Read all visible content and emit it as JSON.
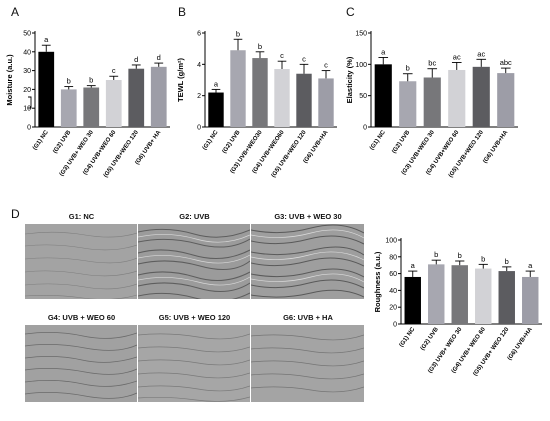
{
  "panel_letters": {
    "a": "A",
    "b": "B",
    "c": "C",
    "d": "D"
  },
  "skin_labels": [
    "G1: NC",
    "G2: UVB",
    "G3: UVB + WEO 30",
    "G4: UVB + WEO 60",
    "G5: UVB + WEO 120",
    "G6: UVB + HA"
  ],
  "colors": {
    "bars": [
      "#000000",
      "#a7a7b0",
      "#77777a",
      "#d2d2d6",
      "#5c5c60",
      "#9d9da7"
    ],
    "skin_base": "#9a9a9a"
  },
  "chart_data": [
    {
      "type": "bar",
      "panel": "A",
      "ylabel": "Moisture (a.u.)",
      "ylim": [
        0,
        50
      ],
      "yticks": [
        "0",
        "10",
        "20",
        "30",
        "40",
        "50"
      ],
      "categories": [
        "(G1) NC",
        "(G2) UVB",
        "(G3) UVB+ WEO 30",
        "(G4) UVB+WEO 60",
        "(G5) UVB+WEO 120",
        "(G6) UVB+ HA"
      ],
      "values": [
        40,
        20,
        21,
        25,
        31,
        32
      ],
      "errors": [
        3.5,
        1.5,
        1,
        2,
        2,
        2
      ],
      "letters": [
        "a",
        "b",
        "b",
        "c",
        "d",
        "d"
      ]
    },
    {
      "type": "bar",
      "panel": "B",
      "ylabel": "TEWL (g/m²)",
      "ylim": [
        0,
        6
      ],
      "yticks": [
        "0",
        "2",
        "4",
        "6"
      ],
      "categories": [
        "(G1) NC",
        "(G2) UVB",
        "(G3) UVB+WEO30",
        "(G4) UVB+WEO60",
        "(G5) UVB+WEO 120",
        "(G6) UVB+HA"
      ],
      "values": [
        2.2,
        4.9,
        4.4,
        3.7,
        3.4,
        3.1
      ],
      "errors": [
        0.2,
        0.7,
        0.4,
        0.5,
        0.6,
        0.5
      ],
      "letters": [
        "a",
        "b",
        "b",
        "c",
        "c",
        "c"
      ]
    },
    {
      "type": "bar",
      "panel": "C",
      "ylabel": "Elasticity (%)",
      "ylim": [
        0,
        150
      ],
      "yticks": [
        "0",
        "50",
        "100",
        "150"
      ],
      "categories": [
        "(G1) NC",
        "(G2) UVB",
        "(G3) UVB+WEO 30",
        "(G4) UVB+WEO 60",
        "(G5) UVB+WEO 120",
        "(G6) UVB+HA"
      ],
      "values": [
        100,
        73,
        79,
        91,
        96,
        86
      ],
      "errors": [
        11,
        12,
        14,
        12,
        12,
        8
      ],
      "letters": [
        "a",
        "b",
        "bc",
        "ac",
        "ac",
        "abc"
      ]
    },
    {
      "type": "bar",
      "panel": "D",
      "ylabel": "Roughness (a.u.)",
      "ylim": [
        0,
        100
      ],
      "yticks": [
        "0",
        "20",
        "40",
        "60",
        "80",
        "100"
      ],
      "categories": [
        "(G1) NC",
        "(G2) UVB",
        "(G3) UVB+ WEO 30",
        "(G4) UVB+ WEO 60",
        "(G5) UVB+ WEO 120",
        "(G6) UVB+HA"
      ],
      "values": [
        56,
        71,
        70,
        66,
        63,
        56
      ],
      "errors": [
        7,
        5,
        5,
        5,
        5,
        7
      ],
      "letters": [
        "a",
        "b",
        "b",
        "b",
        "b",
        "a"
      ]
    }
  ]
}
